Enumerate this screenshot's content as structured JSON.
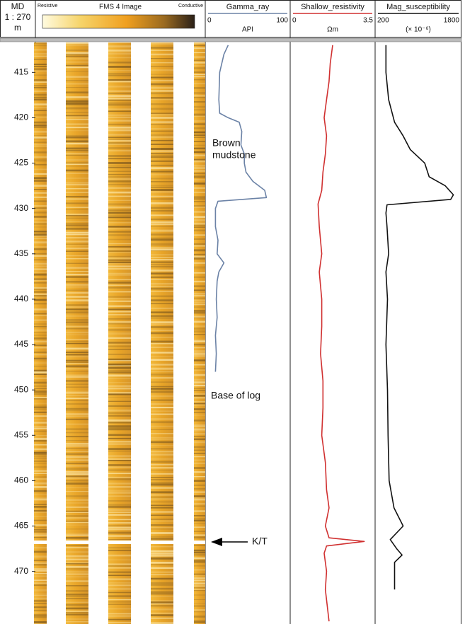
{
  "chart_data": {
    "type": "well_log",
    "depth_axis": {
      "title": "MD",
      "scale": "1 : 270",
      "unit": "m",
      "ylim": [
        411.7,
        475.8
      ],
      "yticks": [
        415,
        420,
        425,
        430,
        435,
        440,
        445,
        450,
        455,
        460,
        465,
        470
      ]
    },
    "image_track": {
      "title": "FMS 4 Image",
      "left_label": "Resistive",
      "right_label": "Conductive"
    },
    "tracks": [
      {
        "type": "line",
        "title": "Gamma_ray",
        "unit": "API",
        "color": "#6b82a6",
        "xlim": [
          0,
          100
        ],
        "xticks": [
          0,
          100
        ],
        "depths": [
          412,
          413,
          415,
          418,
          419.5,
          420,
          420.5,
          421.5,
          423,
          424,
          425,
          426,
          427,
          428,
          428.8,
          429.2,
          430,
          432,
          433.5,
          435,
          436,
          437,
          438,
          440,
          442,
          444,
          446,
          448
        ],
        "values": [
          27,
          22,
          17,
          16,
          17,
          27,
          40,
          43,
          42,
          46,
          46,
          48,
          56,
          70,
          72,
          15,
          12,
          12,
          15,
          14,
          22,
          16,
          14,
          13,
          14,
          12,
          13,
          12
        ]
      },
      {
        "type": "line",
        "title": "Shallow_resistivity",
        "unit": "Ωm",
        "color": "#d03030",
        "xlim": [
          0,
          3.5
        ],
        "xticks": [
          0,
          3.5
        ],
        "depths": [
          412,
          414,
          416,
          418,
          420,
          422,
          424,
          426,
          428,
          429.5,
          432,
          435,
          437,
          440,
          443,
          446,
          449,
          452,
          455,
          458,
          461,
          463,
          465,
          466.3,
          466.7,
          467.2,
          468,
          470,
          472,
          475.5
        ],
        "values": [
          1.75,
          1.65,
          1.6,
          1.5,
          1.4,
          1.5,
          1.45,
          1.35,
          1.3,
          1.15,
          1.2,
          1.3,
          1.2,
          1.3,
          1.3,
          1.25,
          1.35,
          1.35,
          1.3,
          1.45,
          1.5,
          1.6,
          1.45,
          1.6,
          3.05,
          1.5,
          1.4,
          1.5,
          1.45,
          1.6
        ]
      },
      {
        "type": "line",
        "title": "Mag_susceptibility",
        "unit": "(× 10⁻⁶)",
        "color": "#111111",
        "xlim": [
          200,
          1800
        ],
        "xticks": [
          200,
          1800
        ],
        "depths": [
          412,
          415,
          418,
          420.5,
          422,
          423.5,
          425,
          426.5,
          427.5,
          428.5,
          429,
          429.6,
          430.5,
          432,
          435,
          437,
          440,
          445,
          450,
          455,
          460,
          463,
          465,
          466.5,
          467.5,
          468.2,
          469,
          472
        ],
        "values": [
          400,
          400,
          450,
          560,
          720,
          850,
          1120,
          1200,
          1500,
          1650,
          1600,
          420,
          400,
          420,
          450,
          400,
          430,
          400,
          430,
          440,
          460,
          550,
          720,
          480,
          600,
          700,
          560,
          560
        ]
      }
    ],
    "annotations": [
      {
        "lines": [
          "Brown",
          "mudstone"
        ]
      },
      {
        "lines": [
          "Base of log"
        ]
      },
      {
        "lines": [
          "K/T"
        ]
      }
    ]
  }
}
